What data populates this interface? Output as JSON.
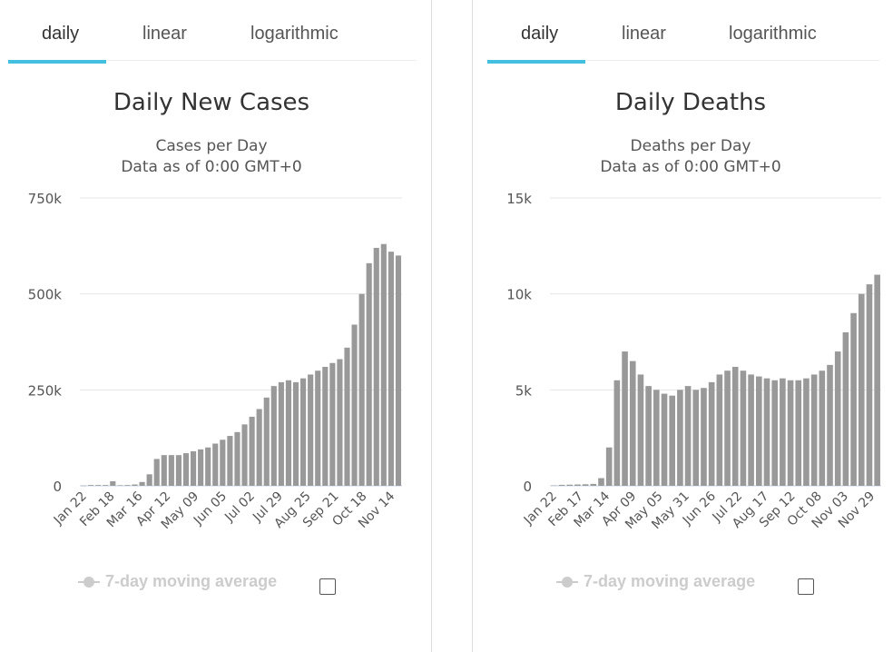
{
  "panels": [
    {
      "tabs": [
        "daily",
        "linear",
        "logarithmic"
      ],
      "active_tab": "daily",
      "title": "Daily New Cases",
      "subtitle_line1": "Cases per Day",
      "subtitle_line2": "Data as of 0:00 GMT+0",
      "legend_label": "7-day moving average"
    },
    {
      "tabs": [
        "daily",
        "linear",
        "logarithmic"
      ],
      "active_tab": "daily",
      "title": "Daily Deaths",
      "subtitle_line1": "Deaths per Day",
      "subtitle_line2": "Data as of 0:00 GMT+0",
      "legend_label": "7-day moving average"
    }
  ],
  "colors": {
    "bar": "#999999",
    "accent": "#43bfe0",
    "grid": "#e6e6e6"
  },
  "chart_data": [
    {
      "type": "bar",
      "title": "Daily New Cases",
      "subtitle": "Cases per Day",
      "ylim": [
        0,
        750000
      ],
      "y_ticks": [
        0,
        250000,
        500000,
        750000
      ],
      "y_tick_labels": [
        "0",
        "250k",
        "500k",
        "750k"
      ],
      "x_tick_labels": [
        "Jan 22",
        "Feb 18",
        "Mar 16",
        "Apr 12",
        "May 09",
        "Jun 05",
        "Jul 02",
        "Jul 29",
        "Aug 25",
        "Sep 21",
        "Oct 18",
        "Nov 14"
      ],
      "weekly_values": [
        600,
        2000,
        2000,
        2000,
        12000,
        1500,
        2000,
        3500,
        10000,
        30000,
        70000,
        80000,
        80000,
        80000,
        85000,
        90000,
        95000,
        100000,
        110000,
        120000,
        130000,
        140000,
        160000,
        180000,
        200000,
        230000,
        260000,
        270000,
        275000,
        270000,
        280000,
        290000,
        300000,
        310000,
        320000,
        330000,
        360000,
        420000,
        500000,
        580000,
        620000,
        630000,
        610000,
        600000
      ],
      "grid": true
    },
    {
      "type": "bar",
      "title": "Daily Deaths",
      "subtitle": "Deaths per Day",
      "ylim": [
        0,
        15000
      ],
      "y_ticks": [
        0,
        5000,
        10000,
        15000
      ],
      "y_tick_labels": [
        "0",
        "5k",
        "10k",
        "15k"
      ],
      "x_tick_labels": [
        "Jan 22",
        "Feb 17",
        "Mar 14",
        "Apr 09",
        "May 05",
        "May 31",
        "Jun 26",
        "Jul 22",
        "Aug 17",
        "Sep 12",
        "Oct 08",
        "Nov 03",
        "Nov 29"
      ],
      "weekly_values": [
        20,
        50,
        60,
        70,
        80,
        100,
        400,
        2000,
        5500,
        7000,
        6500,
        5800,
        5200,
        5000,
        4800,
        4700,
        5000,
        5200,
        5000,
        5100,
        5400,
        5800,
        6000,
        6200,
        6000,
        5800,
        5700,
        5600,
        5500,
        5600,
        5500,
        5500,
        5600,
        5800,
        6000,
        6300,
        7000,
        8000,
        9000,
        10000,
        10500,
        11000
      ],
      "grid": true
    }
  ]
}
